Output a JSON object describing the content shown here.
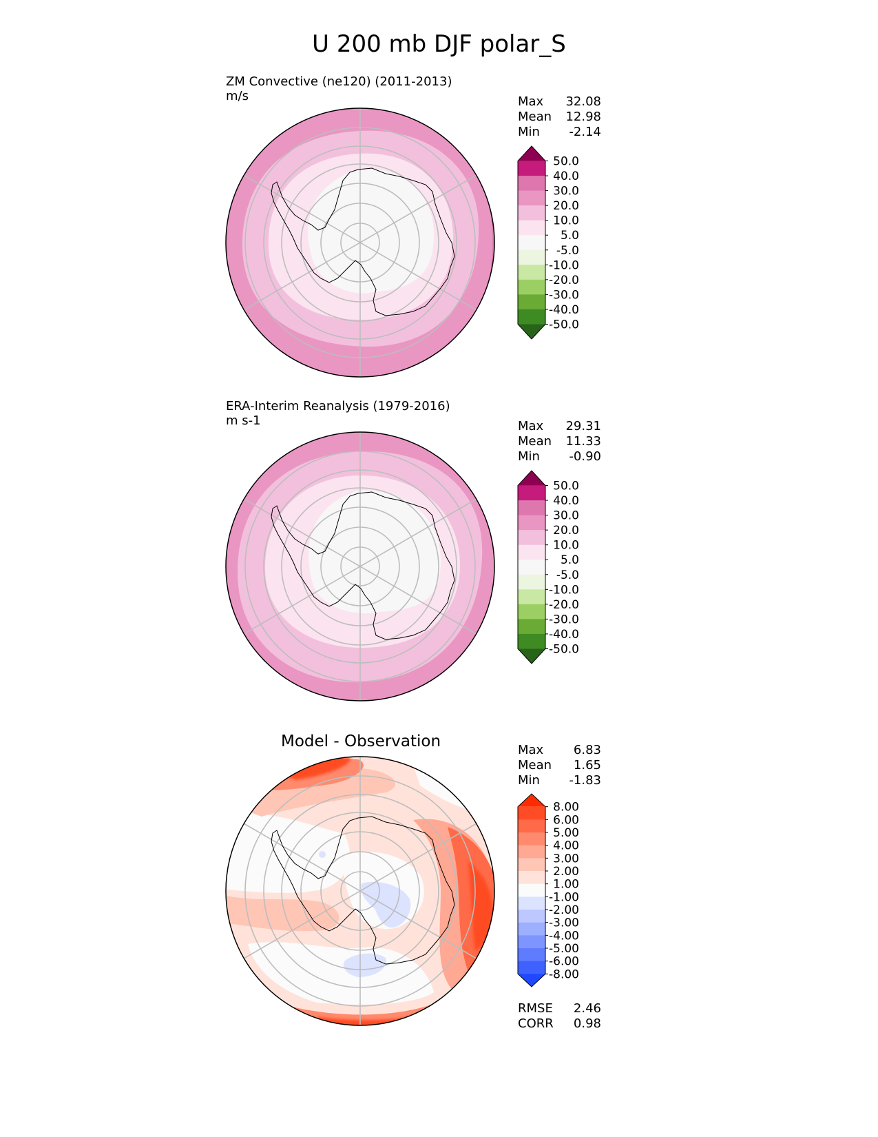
{
  "figure": {
    "title": "U 200 mb DJF polar_S"
  },
  "panels": [
    {
      "id": "test",
      "title": "ZM Convective (ne120) (2011-2013)",
      "units": "m/s",
      "stats": [
        {
          "label": "Max",
          "value": "32.08"
        },
        {
          "label": "Mean",
          "value": "12.98"
        },
        {
          "label": "Min",
          "value": "-2.14"
        }
      ],
      "colorbar": {
        "ticks": [
          "50.0",
          "40.0",
          "30.0",
          "20.0",
          "10.0",
          "5.0",
          "-5.0",
          "-10.0",
          "-20.0",
          "-30.0",
          "-40.0",
          "-50.0"
        ],
        "colors_top_to_bottom": [
          "#8e0152",
          "#c51b7d",
          "#de77ae",
          "#e996c3",
          "#f2c0dd",
          "#fbe4ef",
          "#f7f7f7",
          "#ecf5e0",
          "#c9e8a4",
          "#9bcf64",
          "#6aab35",
          "#3f8b23",
          "#276419"
        ]
      }
    },
    {
      "id": "ref",
      "title": "ERA-Interim Reanalysis (1979-2016)",
      "units": "m s-1",
      "stats": [
        {
          "label": "Max",
          "value": "29.31"
        },
        {
          "label": "Mean",
          "value": "11.33"
        },
        {
          "label": "Min",
          "value": "-0.90"
        }
      ],
      "colorbar": {
        "ticks": [
          "50.0",
          "40.0",
          "30.0",
          "20.0",
          "10.0",
          "5.0",
          "-5.0",
          "-10.0",
          "-20.0",
          "-30.0",
          "-40.0",
          "-50.0"
        ],
        "colors_top_to_bottom": [
          "#8e0152",
          "#c51b7d",
          "#de77ae",
          "#e996c3",
          "#f2c0dd",
          "#fbe4ef",
          "#f7f7f7",
          "#ecf5e0",
          "#c9e8a4",
          "#9bcf64",
          "#6aab35",
          "#3f8b23",
          "#276419"
        ]
      }
    },
    {
      "id": "diff",
      "title": "Model - Observation",
      "units": "",
      "stats": [
        {
          "label": "Max",
          "value": "6.83"
        },
        {
          "label": "Mean",
          "value": "1.65"
        },
        {
          "label": "Min",
          "value": "-1.83"
        }
      ],
      "extra_stats": [
        {
          "label": "RMSE",
          "value": "2.46"
        },
        {
          "label": "CORR",
          "value": "0.98"
        }
      ],
      "colorbar": {
        "ticks": [
          "8.00",
          "6.00",
          "5.00",
          "4.00",
          "3.00",
          "2.00",
          "1.00",
          "-1.00",
          "-2.00",
          "-3.00",
          "-4.00",
          "-5.00",
          "-6.00",
          "-8.00"
        ],
        "colors_top_to_bottom": [
          "#ff2b00",
          "#ff4c24",
          "#ff6a48",
          "#ff8a6e",
          "#ffa893",
          "#ffc6b6",
          "#ffe3da",
          "#fbfbfb",
          "#dce3ff",
          "#bcc8ff",
          "#9dafff",
          "#7e95ff",
          "#5f7cff",
          "#3f62ff",
          "#1f48ff"
        ]
      }
    }
  ],
  "chart_data": [
    {
      "type": "heatmap",
      "projection": "south polar stereographic",
      "title": "ZM Convective (ne120) (2011-2013)",
      "units": "m/s",
      "variable": "U 200 mb DJF",
      "levels": [
        -50,
        -40,
        -30,
        -20,
        -10,
        -5,
        5,
        10,
        20,
        30,
        40,
        50
      ],
      "bands_pole_to_edge": [
        {
          "lat_range": [
            -90,
            -72
          ],
          "value_range": [
            -5,
            5
          ]
        },
        {
          "lat_range": [
            -72,
            -62
          ],
          "value_range": [
            5,
            10
          ]
        },
        {
          "lat_range": [
            -62,
            -50
          ],
          "value_range": [
            10,
            20
          ]
        },
        {
          "lat_range": [
            -50,
            -40
          ],
          "value_range": [
            20,
            30
          ]
        },
        {
          "lat_range": [
            -40,
            -35
          ],
          "value_range": [
            30,
            40
          ],
          "region": "eastern edge"
        }
      ],
      "stats": {
        "max": 32.08,
        "mean": 12.98,
        "min": -2.14
      },
      "grid": true
    },
    {
      "type": "heatmap",
      "projection": "south polar stereographic",
      "title": "ERA-Interim Reanalysis (1979-2016)",
      "units": "m s-1",
      "variable": "U 200 mb DJF",
      "levels": [
        -50,
        -40,
        -30,
        -20,
        -10,
        -5,
        5,
        10,
        20,
        30,
        40,
        50
      ],
      "bands_pole_to_edge": [
        {
          "lat_range": [
            -90,
            -72
          ],
          "value_range": [
            -5,
            5
          ]
        },
        {
          "lat_range": [
            -72,
            -64
          ],
          "value_range": [
            5,
            10
          ]
        },
        {
          "lat_range": [
            -64,
            -50
          ],
          "value_range": [
            10,
            20
          ]
        },
        {
          "lat_range": [
            -50,
            -40
          ],
          "value_range": [
            20,
            30
          ]
        }
      ],
      "stats": {
        "max": 29.31,
        "mean": 11.33,
        "min": -0.9
      },
      "grid": true
    },
    {
      "type": "heatmap",
      "projection": "south polar stereographic",
      "title": "Model - Observation",
      "variable": "U 200 mb DJF difference",
      "levels": [
        -8,
        -6,
        -5,
        -4,
        -3,
        -2,
        -1,
        1,
        2,
        3,
        4,
        5,
        6,
        8
      ],
      "features": [
        {
          "region": "eastern edge (lon 60-150E, lat -45 to -35)",
          "value_range": [
            4,
            6
          ]
        },
        {
          "region": "northern edge (lon 150W-180, lat -40 to -35)",
          "value_range": [
            4,
            6
          ]
        },
        {
          "region": "southern edge (lon 0-30E, lat -40 to -35)",
          "value_range": [
            3,
            5
          ]
        },
        {
          "region": "near pole (lat -85 to -78)",
          "value_range": [
            -2,
            -1
          ]
        },
        {
          "region": "Weddell Sea sector (lat -70 to -65)",
          "value_range": [
            -2,
            -1
          ]
        }
      ],
      "stats": {
        "max": 6.83,
        "mean": 1.65,
        "min": -1.83,
        "rmse": 2.46,
        "corr": 0.98
      },
      "grid": true
    }
  ]
}
